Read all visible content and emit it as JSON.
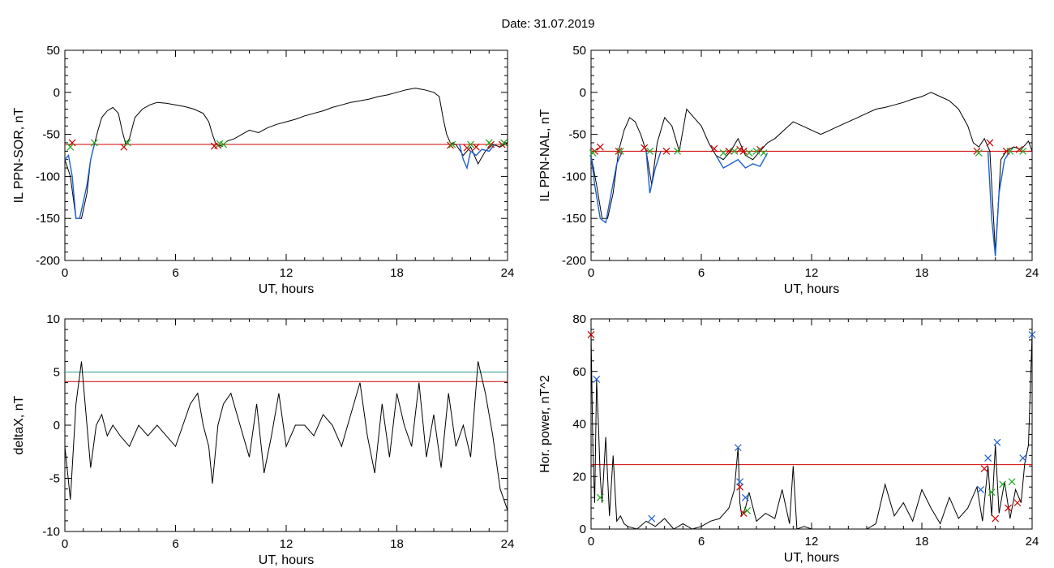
{
  "title": "Date:  31.07.2019",
  "chart_data": [
    {
      "id": "sor",
      "type": "line",
      "xlabel": "UT, hours",
      "ylabel": "IL PPN-SOR, nT",
      "xlim": [
        0,
        24
      ],
      "ylim": [
        -200,
        50
      ],
      "xticks": [
        0,
        6,
        12,
        18,
        24
      ],
      "yticks": [
        -200,
        -150,
        -100,
        -50,
        0,
        50
      ],
      "threshold": -62,
      "series": [
        {
          "color": "#000000",
          "x": [
            0,
            0.3,
            0.6,
            0.9,
            1.2,
            1.4,
            1.6,
            1.8,
            2.0,
            2.3,
            2.6,
            2.9,
            3.1,
            3.3,
            3.5,
            3.8,
            4.2,
            4.6,
            5.0,
            5.5,
            6.0,
            6.5,
            7.0,
            7.5,
            7.8,
            8.0,
            8.2,
            8.5,
            8.8,
            9.2,
            9.6,
            10.0,
            10.5,
            11.0,
            11.5,
            12.0,
            12.5,
            13.0,
            13.5,
            14.0,
            14.5,
            15.0,
            15.5,
            16.0,
            16.5,
            17.0,
            17.5,
            18.0,
            18.5,
            19.0,
            19.5,
            20.0,
            20.3,
            20.5,
            20.7,
            20.9,
            21.2,
            21.6,
            22.0,
            22.4,
            22.8,
            23.2,
            23.6,
            24.0
          ],
          "y": [
            -80,
            -100,
            -150,
            -150,
            -120,
            -80,
            -62,
            -45,
            -30,
            -22,
            -18,
            -25,
            -45,
            -62,
            -55,
            -30,
            -20,
            -15,
            -12,
            -13,
            -15,
            -17,
            -20,
            -25,
            -35,
            -50,
            -62,
            -64,
            -58,
            -55,
            -50,
            -45,
            -48,
            -42,
            -38,
            -35,
            -32,
            -28,
            -25,
            -22,
            -18,
            -15,
            -12,
            -10,
            -8,
            -5,
            -3,
            0,
            3,
            5,
            3,
            0,
            -5,
            -30,
            -50,
            -60,
            -62,
            -75,
            -65,
            -85,
            -70,
            -62,
            -65,
            -60
          ]
        },
        {
          "color": "#1f5fd0",
          "x": [
            0,
            0.2,
            0.4,
            0.6,
            0.8,
            1.0,
            1.2,
            1.4,
            1.6
          ],
          "y": [
            -80,
            -75,
            -100,
            -150,
            -150,
            -130,
            -110,
            -80,
            -62
          ]
        },
        {
          "color": "#1f5fd0",
          "x": [
            21.4,
            21.6,
            21.8,
            22.0,
            22.3,
            22.6,
            23.0,
            23.3
          ],
          "y": [
            -62,
            -80,
            -90,
            -70,
            -75,
            -68,
            -70,
            -62
          ]
        }
      ],
      "markers": [
        {
          "color": "#d00000",
          "x": [
            0.4,
            3.2,
            8.1,
            8.3,
            20.9,
            21.8,
            22.3,
            23.1,
            23.7
          ],
          "y": [
            -60,
            -65,
            -64,
            -63,
            -63,
            -66,
            -65,
            -62,
            -62
          ]
        },
        {
          "color": "#22aa22",
          "x": [
            0.3,
            1.6,
            3.4,
            8.4,
            8.6,
            21.0,
            22.0,
            23.0,
            23.8
          ],
          "y": [
            -65,
            -60,
            -60,
            -61,
            -62,
            -62,
            -62,
            -60,
            -60
          ]
        }
      ]
    },
    {
      "id": "nal",
      "type": "line",
      "xlabel": "UT, hours",
      "ylabel": "IL PPN-NAL, nT",
      "xlim": [
        0,
        24
      ],
      "ylim": [
        -200,
        50
      ],
      "xticks": [
        0,
        6,
        12,
        18,
        24
      ],
      "yticks": [
        -200,
        -150,
        -100,
        -50,
        0,
        50
      ],
      "threshold": -70,
      "series": [
        {
          "color": "#000000",
          "x": [
            0,
            0.3,
            0.6,
            0.9,
            1.2,
            1.5,
            1.8,
            2.1,
            2.4,
            2.7,
            3.0,
            3.3,
            3.6,
            4.0,
            4.4,
            4.8,
            5.2,
            5.6,
            6.0,
            6.4,
            6.8,
            7.2,
            7.6,
            8.0,
            8.4,
            8.8,
            9.2,
            9.6,
            10.0,
            10.5,
            11.0,
            11.5,
            12.0,
            12.5,
            13.0,
            13.5,
            14.0,
            14.5,
            15.0,
            15.5,
            16.0,
            16.5,
            17.0,
            17.5,
            18.0,
            18.5,
            19.0,
            19.5,
            20.0,
            20.5,
            20.8,
            21.1,
            21.4,
            21.7,
            22.0,
            22.3,
            22.6,
            23.0,
            23.4,
            23.8,
            24.0
          ],
          "y": [
            -75,
            -110,
            -150,
            -150,
            -120,
            -70,
            -45,
            -30,
            -35,
            -50,
            -70,
            -110,
            -60,
            -30,
            -40,
            -70,
            -20,
            -30,
            -40,
            -60,
            -75,
            -80,
            -70,
            -55,
            -75,
            -80,
            -70,
            -60,
            -55,
            -45,
            -35,
            -40,
            -45,
            -50,
            -45,
            -40,
            -35,
            -30,
            -25,
            -20,
            -18,
            -15,
            -12,
            -8,
            -5,
            0,
            -5,
            -10,
            -20,
            -40,
            -60,
            -65,
            -55,
            -70,
            -190,
            -80,
            -70,
            -65,
            -68,
            -58,
            -70
          ]
        },
        {
          "color": "#1f5fd0",
          "x": [
            0,
            0.2,
            0.5,
            0.8,
            1.1,
            1.4,
            1.7
          ],
          "y": [
            -75,
            -110,
            -150,
            -155,
            -120,
            -85,
            -70
          ]
        },
        {
          "color": "#1f5fd0",
          "x": [
            3.0,
            3.2,
            3.5,
            3.8
          ],
          "y": [
            -70,
            -120,
            -90,
            -70
          ]
        },
        {
          "color": "#1f5fd0",
          "x": [
            6.8,
            7.2,
            7.6,
            8.0,
            8.4,
            8.8,
            9.2,
            9.6
          ],
          "y": [
            -75,
            -90,
            -85,
            -80,
            -90,
            -85,
            -88,
            -72
          ]
        },
        {
          "color": "#1f5fd0",
          "x": [
            21.6,
            21.8,
            22.0,
            22.2,
            22.5,
            22.8
          ],
          "y": [
            -70,
            -150,
            -195,
            -120,
            -80,
            -70
          ]
        }
      ],
      "markers": [
        {
          "color": "#d00000",
          "x": [
            0.2,
            0.5,
            1.5,
            2.9,
            4.1,
            6.7,
            7.5,
            8.1,
            8.3,
            9.2,
            21.0,
            21.7,
            22.6,
            23.3
          ],
          "y": [
            -70,
            -65,
            -70,
            -66,
            -70,
            -67,
            -70,
            -68,
            -70,
            -68,
            -70,
            -60,
            -70,
            -68
          ]
        },
        {
          "color": "#22aa22",
          "x": [
            0.1,
            1.6,
            3.2,
            4.7,
            7.2,
            7.8,
            8.6,
            9.0,
            9.4,
            21.1,
            22.8,
            23.5
          ],
          "y": [
            -72,
            -70,
            -70,
            -70,
            -72,
            -70,
            -72,
            -70,
            -72,
            -72,
            -70,
            -70
          ]
        }
      ]
    },
    {
      "id": "deltax",
      "type": "line",
      "xlabel": "UT, hours",
      "ylabel": "deltaX, nT",
      "xlim": [
        0,
        24
      ],
      "ylim": [
        -10,
        10
      ],
      "xticks": [
        0,
        6,
        12,
        18,
        24
      ],
      "yticks": [
        -10,
        -5,
        0,
        5,
        10
      ],
      "threshold": 4.1,
      "threshold2": 5,
      "series": [
        {
          "color": "#000000",
          "x": [
            0,
            0.3,
            0.6,
            0.9,
            1.1,
            1.4,
            1.7,
            2.0,
            2.3,
            2.6,
            3.0,
            3.5,
            4.0,
            4.5,
            5.0,
            5.5,
            6.0,
            6.4,
            6.8,
            7.2,
            7.5,
            7.8,
            8.0,
            8.3,
            8.6,
            9.0,
            9.5,
            10.0,
            10.4,
            10.8,
            11.2,
            11.6,
            12.0,
            12.5,
            13.0,
            13.5,
            14.0,
            14.5,
            15.0,
            15.5,
            16.0,
            16.4,
            16.8,
            17.2,
            17.6,
            18.0,
            18.4,
            18.8,
            19.2,
            19.6,
            20.0,
            20.4,
            20.8,
            21.2,
            21.6,
            22.0,
            22.4,
            22.8,
            23.2,
            23.6,
            24.0
          ],
          "y": [
            -2,
            -7,
            2,
            6,
            2,
            -4,
            0,
            1,
            -1,
            0,
            -1,
            -2,
            0,
            -1,
            0,
            -1,
            -2,
            0,
            2,
            3,
            0,
            -2,
            -5.5,
            0,
            2,
            3,
            0,
            -3,
            2,
            -4.5,
            -1,
            3,
            -2,
            0,
            0,
            -1,
            1,
            0,
            -2,
            1,
            4,
            -1,
            -4.5,
            2,
            -3,
            3,
            0,
            -2,
            4,
            -3,
            1,
            -4,
            3,
            -2,
            0,
            -3,
            6,
            3,
            -1,
            -6,
            -8
          ]
        }
      ],
      "hlines": [
        {
          "value": 5,
          "color": "#2a9d8f"
        },
        {
          "value": 4.1,
          "color": "#d00000"
        }
      ],
      "markers": []
    },
    {
      "id": "power",
      "type": "line",
      "xlabel": "UT, hours",
      "ylabel": "Hor. power, nT^2",
      "xlim": [
        0,
        24
      ],
      "ylim": [
        0,
        80
      ],
      "xticks": [
        0,
        6,
        12,
        18,
        24
      ],
      "yticks": [
        0,
        20,
        40,
        60,
        80
      ],
      "threshold": 24.5,
      "series": [
        {
          "color": "#000000",
          "x": [
            0,
            0.1,
            0.2,
            0.3,
            0.4,
            0.5,
            0.6,
            0.8,
            1.0,
            1.2,
            1.4,
            1.6,
            1.8,
            2.0,
            2.5,
            3.0,
            3.5,
            4.0,
            4.5,
            5.0,
            5.5,
            6.0,
            6.5,
            7.0,
            7.5,
            7.8,
            8.0,
            8.1,
            8.2,
            8.4,
            8.6,
            9.0,
            9.5,
            10.0,
            10.4,
            10.8,
            11.0,
            11.2,
            11.6,
            12.0,
            13.0,
            14.0,
            15.0,
            15.5,
            16.0,
            16.5,
            17.0,
            17.5,
            18.0,
            18.5,
            19.0,
            19.5,
            20.0,
            20.5,
            21.0,
            21.3,
            21.6,
            21.8,
            22.0,
            22.2,
            22.5,
            22.8,
            23.1,
            23.4,
            23.6,
            23.8,
            24.0
          ],
          "y": [
            74,
            30,
            10,
            57,
            40,
            20,
            10,
            35,
            5,
            28,
            3,
            5,
            2,
            1,
            0,
            3,
            1,
            4,
            0,
            2,
            0,
            1,
            3,
            4,
            8,
            15,
            31,
            10,
            5,
            8,
            14,
            3,
            6,
            4,
            15,
            2,
            24,
            0,
            1,
            0,
            0,
            0,
            0,
            2,
            17,
            5,
            10,
            3,
            15,
            8,
            2,
            12,
            4,
            8,
            16,
            3,
            24,
            5,
            32,
            6,
            18,
            4,
            15,
            10,
            25,
            32,
            74
          ]
        }
      ],
      "hlines": [
        {
          "value": 24.5,
          "color": "#d00000"
        }
      ],
      "markers": [
        {
          "color": "#d00000",
          "x": [
            0,
            8.1,
            8.3,
            21.4,
            22.0,
            22.7,
            23.2
          ],
          "y": [
            74,
            16,
            6,
            23,
            4,
            8,
            10
          ]
        },
        {
          "color": "#22aa22",
          "x": [
            0.5,
            8.5,
            21.8,
            22.4,
            22.9
          ],
          "y": [
            12,
            7,
            14,
            17,
            18
          ]
        },
        {
          "color": "#1f5fd0",
          "x": [
            0.3,
            3.3,
            8.0,
            8.1,
            8.4,
            21.2,
            21.6,
            22.1,
            23.5,
            24.0
          ],
          "y": [
            57,
            4,
            31,
            18,
            12,
            15,
            27,
            33,
            27,
            74
          ]
        }
      ]
    }
  ]
}
